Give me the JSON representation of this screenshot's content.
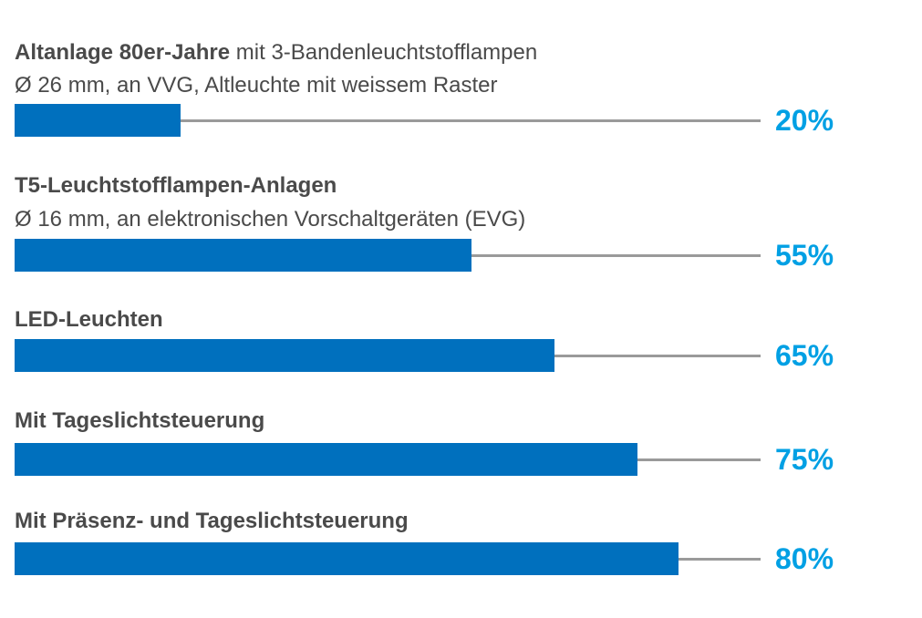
{
  "colors": {
    "bar": "#0070be",
    "value_text": "#00a0e4",
    "track": "#9a9a9a",
    "label_text": "#4a4a4a"
  },
  "chart_data": {
    "type": "bar",
    "orientation": "horizontal",
    "xlim": [
      0,
      100
    ],
    "grid": false,
    "categories": [
      "Altanlage 80er-Jahre mit 3-Bandenleuchtstofflampen Ø 26 mm, an VVG, Altleuchte mit weissem Raster",
      "T5-Leuchtstofflampen-Anlagen Ø 16 mm, an elektronischen Vorschaltgeräten (EVG)",
      "LED-Leuchten",
      "Mit Tageslichtsteuerung",
      "Mit Präsenz- und Tageslichtsteuerung"
    ],
    "values": [
      20,
      55,
      65,
      75,
      80
    ],
    "items": [
      {
        "title_bold": "Altanlage 80er-Jahre",
        "title_rest": " mit 3-Bandenleuchtstofflampen",
        "subtitle": "Ø 26 mm, an VVG, Altleuchte mit weissem Raster",
        "value": 20,
        "value_label": "20%"
      },
      {
        "title_bold": "T5-Leuchtstofflampen-Anlagen",
        "title_rest": "",
        "subtitle": "Ø 16 mm, an elektronischen Vorschaltgeräten (EVG)",
        "value": 55,
        "value_label": "55%"
      },
      {
        "title_bold": "LED-Leuchten",
        "title_rest": "",
        "subtitle": "",
        "value": 65,
        "value_label": "65%"
      },
      {
        "title_bold": "Mit Tageslichtsteuerung",
        "title_rest": "",
        "subtitle": "",
        "value": 75,
        "value_label": "75%"
      },
      {
        "title_bold": "Mit Präsenz- und Tageslichtsteuerung",
        "title_rest": "",
        "subtitle": "",
        "value": 80,
        "value_label": "80%"
      }
    ]
  }
}
